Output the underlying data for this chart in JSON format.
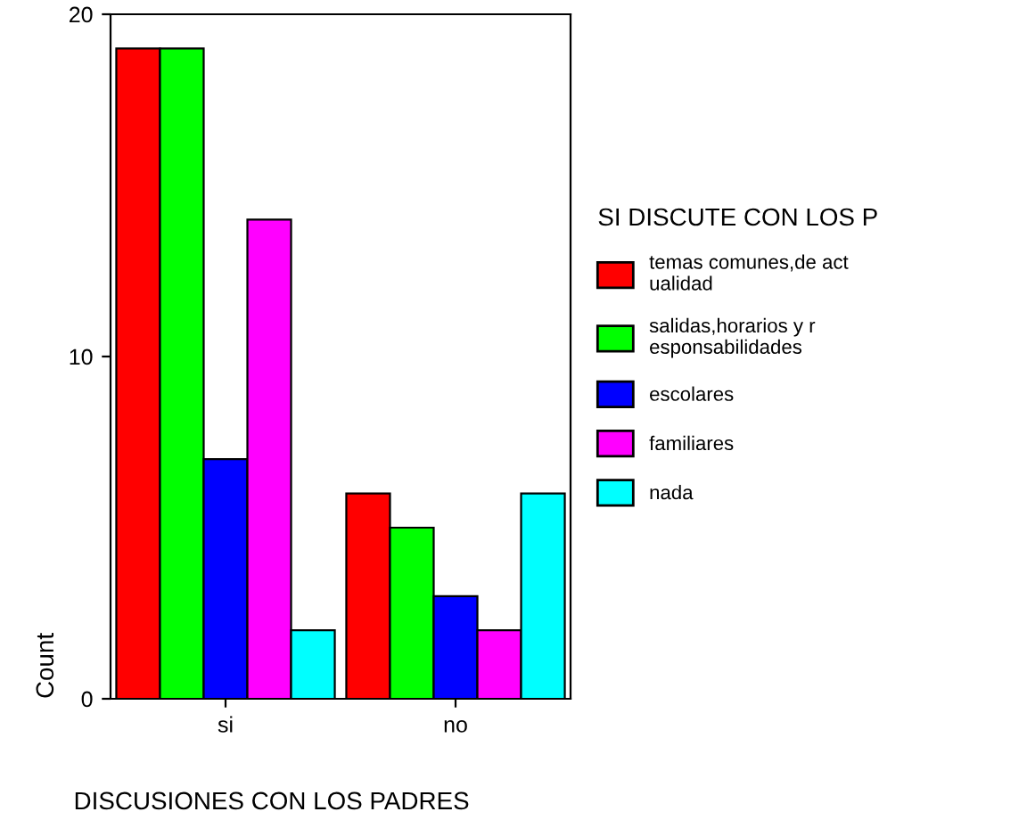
{
  "chart_data": {
    "type": "bar",
    "categories": [
      "si",
      "no"
    ],
    "series": [
      {
        "name": "temas comunes,de act\nualidad",
        "color": "#ff0000",
        "values": [
          19,
          6
        ]
      },
      {
        "name": "salidas,horarios y r\nesponsabilidades",
        "color": "#00ff00",
        "values": [
          19,
          5
        ]
      },
      {
        "name": "escolares",
        "color": "#0000ff",
        "values": [
          7,
          3
        ]
      },
      {
        "name": "familiares",
        "color": "#ff00ff",
        "values": [
          14,
          2
        ]
      },
      {
        "name": "nada",
        "color": "#00ffff",
        "values": [
          2,
          6
        ]
      }
    ],
    "xlabel": "DISCUSIONES CON LOS PADRES",
    "ylabel": "Count",
    "legend_title": "SI DISCUTE CON LOS P",
    "ylim": [
      0,
      20
    ],
    "yticks": [
      0,
      10,
      20
    ],
    "grid": false,
    "legend": "right"
  }
}
